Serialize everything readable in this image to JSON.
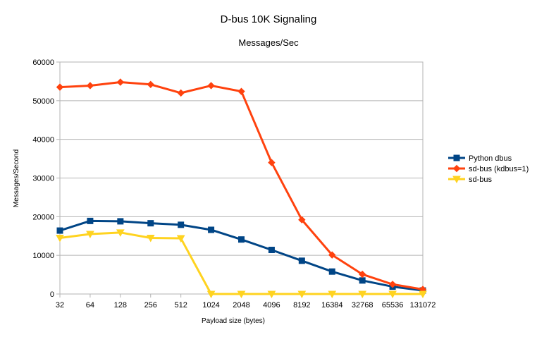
{
  "chart_data": {
    "type": "line",
    "title": "D-bus 10K Signaling",
    "subtitle": "Messages/Sec",
    "xlabel": "Payload size (bytes)",
    "ylabel": "Messages/Second",
    "categories": [
      "32",
      "64",
      "128",
      "256",
      "512",
      "1024",
      "2048",
      "4096",
      "8192",
      "16384",
      "32768",
      "65536",
      "131072"
    ],
    "ylim": [
      0,
      60000
    ],
    "yticks": [
      "0",
      "10000",
      "20000",
      "30000",
      "40000",
      "50000",
      "60000"
    ],
    "grid": true,
    "legend_position": "right",
    "series": [
      {
        "name": "Python dbus",
        "color": "#004586",
        "marker": "square",
        "values": [
          16400,
          18900,
          18800,
          18300,
          17900,
          16600,
          14100,
          11400,
          8600,
          5800,
          3500,
          1900,
          900
        ]
      },
      {
        "name": "sd-bus (kdbus=1)",
        "color": "#ff420e",
        "marker": "diamond",
        "values": [
          53500,
          53900,
          54800,
          54200,
          52000,
          53900,
          52400,
          34000,
          19200,
          10100,
          5100,
          2500,
          1200
        ]
      },
      {
        "name": "sd-bus",
        "color": "#ffd320",
        "marker": "triangle-down",
        "values": [
          14500,
          15500,
          15900,
          14500,
          14400,
          0,
          0,
          0,
          0,
          0,
          0,
          0,
          0
        ]
      }
    ]
  }
}
